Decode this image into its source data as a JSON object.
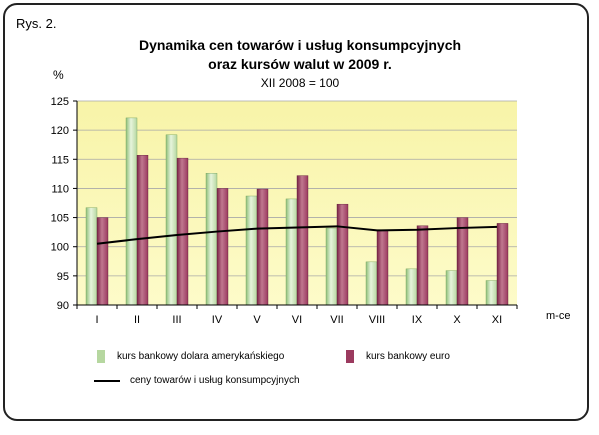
{
  "figure_label": "Rys. 2.",
  "chart_data": {
    "type": "bar",
    "title_line1": "Dynamika cen towarów i usług konsumpcyjnych",
    "title_line2": "oraz kursów walut w 2009 r.",
    "subtitle": "XII 2008 = 100",
    "ylabel": "%",
    "xunit": "m-ce",
    "ylim": [
      90,
      125
    ],
    "yticks": [
      90,
      95,
      100,
      105,
      110,
      115,
      120,
      125
    ],
    "categories": [
      "I",
      "II",
      "III",
      "IV",
      "V",
      "VI",
      "VII",
      "VIII",
      "IX",
      "X",
      "XI"
    ],
    "series": [
      {
        "name": "kurs bankowy dolara amerykańskiego",
        "kind": "bar",
        "color": "#b6d7a0",
        "values": [
          106.7,
          122.1,
          119.2,
          112.6,
          108.7,
          108.2,
          103.2,
          97.4,
          96.2,
          95.9,
          94.2
        ]
      },
      {
        "name": "kurs bankowy euro",
        "kind": "bar",
        "color": "#9b3a5f",
        "values": [
          105.0,
          115.7,
          115.2,
          110.0,
          109.9,
          112.2,
          107.3,
          102.9,
          103.6,
          105.0,
          104.0
        ]
      },
      {
        "name": "ceny towarów i usług konsumpcyjnych",
        "kind": "line",
        "color": "#000000",
        "values": [
          100.5,
          101.3,
          102.0,
          102.6,
          103.1,
          103.3,
          103.5,
          102.8,
          102.9,
          103.2,
          103.4
        ]
      }
    ],
    "plot_background": "#fdfbc9"
  }
}
